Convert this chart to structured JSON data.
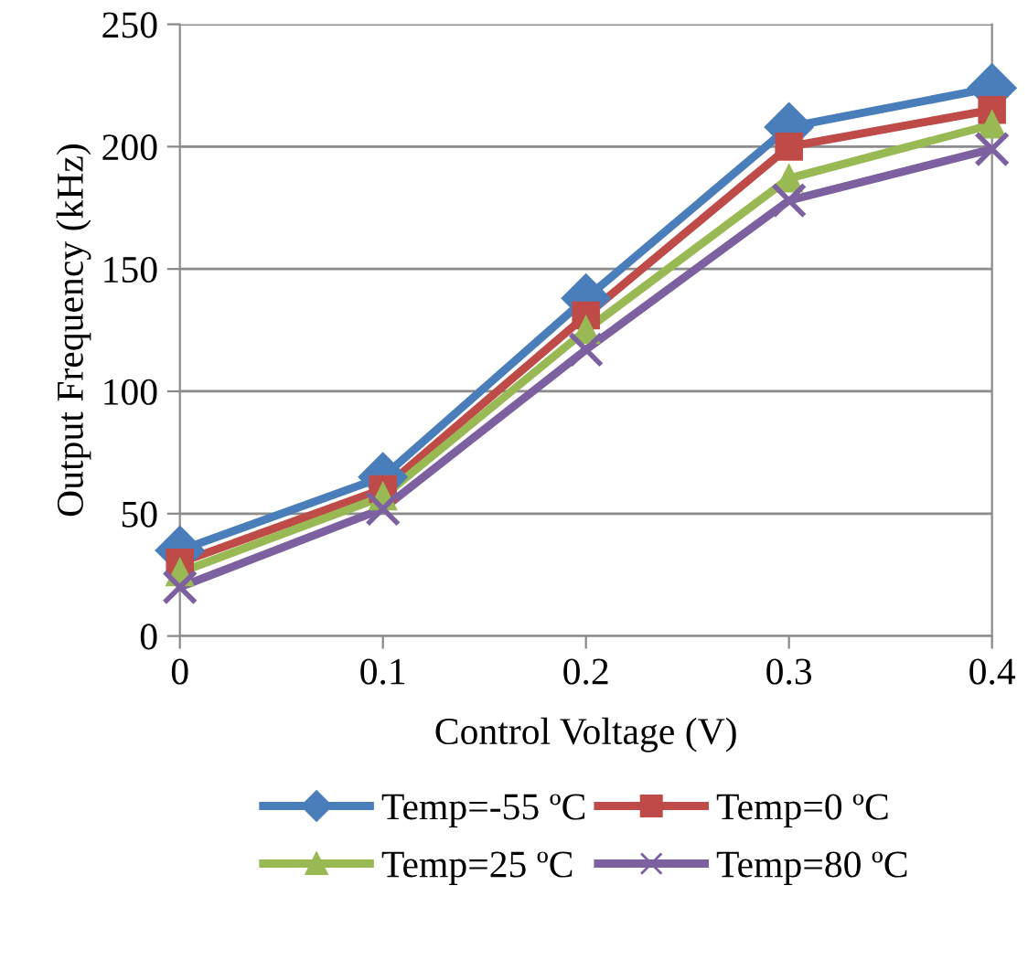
{
  "chart_data": {
    "type": "line",
    "xlabel": "Control Voltage (V)",
    "ylabel": "Output Frequency (kHz)",
    "x": [
      0,
      0.1,
      0.2,
      0.3,
      0.4
    ],
    "series": [
      {
        "name": "Temp=-55 ºC",
        "color": "#4a7ebb",
        "marker": "diamond",
        "values": [
          35,
          65,
          138,
          208,
          224
        ]
      },
      {
        "name": "Temp=0 ºC",
        "color": "#be4b48",
        "marker": "square",
        "values": [
          30,
          60,
          131,
          200,
          215
        ]
      },
      {
        "name": "Temp=25 ºC",
        "color": "#98b954",
        "marker": "triangle",
        "values": [
          26,
          57,
          125,
          187,
          209
        ]
      },
      {
        "name": "Temp=80 ºC",
        "color": "#7d60a0",
        "marker": "cross",
        "values": [
          20,
          52,
          117,
          178,
          199
        ]
      }
    ],
    "xlim": [
      0,
      0.4
    ],
    "xticks": [
      0,
      0.1,
      0.2,
      0.3,
      0.4
    ],
    "ylim": [
      0,
      250
    ],
    "yticks": [
      0,
      50,
      100,
      150,
      200,
      250
    ],
    "grid": "y",
    "legend": "bottom",
    "line_style": "solid"
  }
}
